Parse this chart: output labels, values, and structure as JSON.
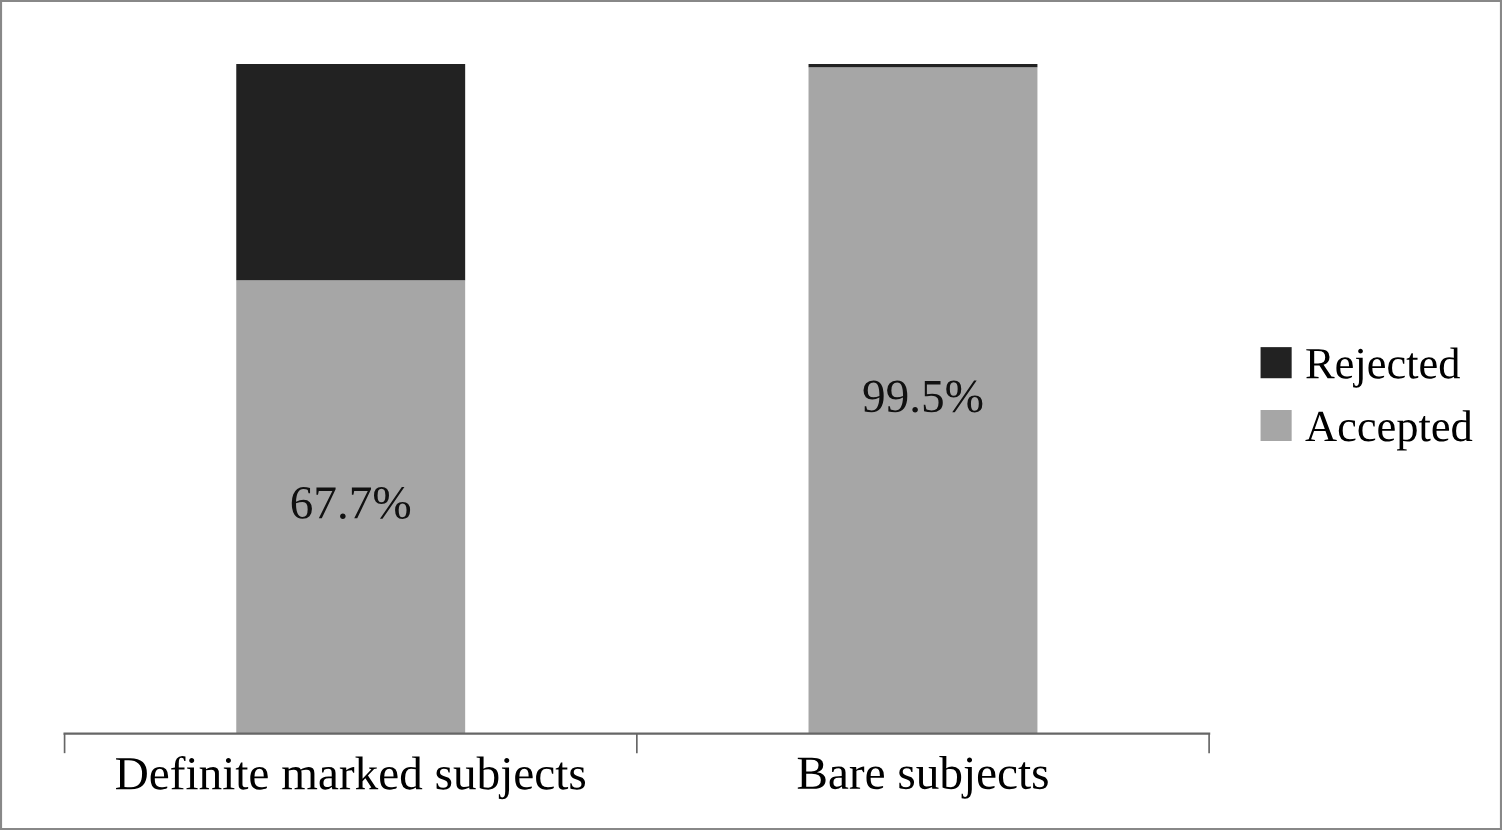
{
  "chart_data": {
    "type": "bar",
    "stacked": true,
    "categories": [
      "Definite marked subjects",
      "Bare subjects"
    ],
    "series": [
      {
        "name": "Accepted",
        "color": "#a6a6a6",
        "values": [
          67.7,
          99.5
        ],
        "value_labels": [
          "67.7%",
          "99.5%"
        ]
      },
      {
        "name": "Rejected",
        "color": "#222222",
        "values": [
          32.3,
          0.5
        ]
      }
    ],
    "legend": "right",
    "grid": false
  }
}
